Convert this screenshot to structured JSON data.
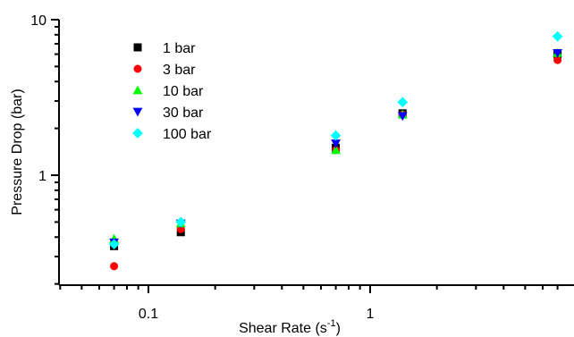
{
  "chart_data": {
    "type": "scatter",
    "xlabel": "Shear Rate (s",
    "xlabel_sup": "-1",
    "xlabel_end": ")",
    "ylabel": "Pressure Drop (bar)",
    "x_scale": "log",
    "y_scale": "log",
    "xlim": [
      0.04,
      7.0
    ],
    "ylim": [
      0.2,
      10
    ],
    "x_tick_labels": [
      {
        "value": 0.1,
        "label": "0.1"
      },
      {
        "value": 1,
        "label": "1"
      }
    ],
    "y_tick_labels": [
      {
        "value": 1,
        "label": "1"
      },
      {
        "value": 10,
        "label": "10"
      }
    ],
    "legend_placement": "top-left",
    "grid": false,
    "series": [
      {
        "name": "1 bar",
        "marker": "square",
        "color": "#000000",
        "x": [
          0.07,
          0.14,
          0.7,
          1.4,
          7.0
        ],
        "y": [
          0.35,
          0.43,
          1.5,
          2.5,
          6.0
        ]
      },
      {
        "name": "3 bar",
        "marker": "circle",
        "color": "#ff0000",
        "x": [
          0.07,
          0.14,
          0.7,
          1.4,
          7.0
        ],
        "y": [
          0.26,
          0.45,
          1.45,
          2.45,
          5.5
        ]
      },
      {
        "name": "10 bar",
        "marker": "triangle-up",
        "color": "#00ff00",
        "x": [
          0.07,
          0.14,
          0.7,
          1.4,
          7.0
        ],
        "y": [
          0.39,
          0.49,
          1.45,
          2.45,
          6.1
        ]
      },
      {
        "name": "30 bar",
        "marker": "triangle-down",
        "color": "#0000ff",
        "x": [
          0.07,
          0.14,
          0.7,
          1.4,
          7.0
        ],
        "y": [
          0.37,
          0.49,
          1.6,
          2.4,
          6.1
        ]
      },
      {
        "name": "100 bar",
        "marker": "diamond",
        "color": "#00ffff",
        "x": [
          0.07,
          0.14,
          0.7,
          1.4,
          7.0
        ],
        "y": [
          0.36,
          0.5,
          1.8,
          2.95,
          7.8
        ]
      }
    ]
  }
}
